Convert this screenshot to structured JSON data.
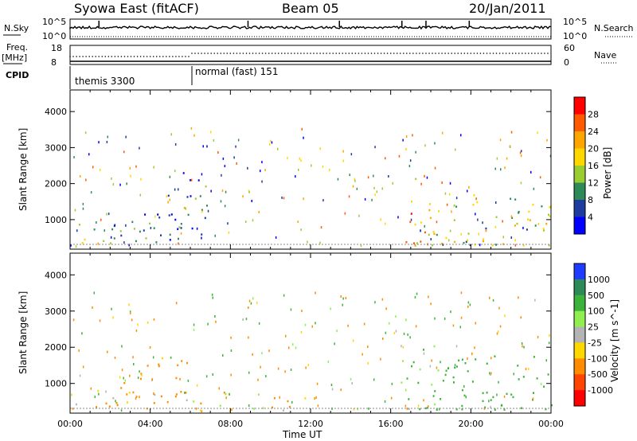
{
  "header": {
    "station": "Syowa East (fitACF)",
    "beam": "Beam 05",
    "date": "20/Jan/2011"
  },
  "top_panels": {
    "nsky_label": "N.Sky",
    "nsky_ticks": [
      "10^5",
      "10^0"
    ],
    "nsearch_label": "N.Search",
    "nsearch_ticks": [
      "10^5",
      "10^0"
    ],
    "freq_label_1": "Freq.",
    "freq_label_2": "[MHz]",
    "freq_ticks": [
      "18",
      "8"
    ],
    "nave_label": "Nave",
    "nave_ticks": [
      "60",
      "0"
    ],
    "cpid_label": "CPID",
    "cpid_modes": [
      {
        "name": "themis 3300",
        "start_hour": 0
      },
      {
        "name": "normal (fast) 151",
        "start_hour": 6
      }
    ]
  },
  "chart_data": [
    {
      "type": "heatmap",
      "title": "Power",
      "ylabel": "Slant Range [km]",
      "xlabel": "",
      "colorbar_label": "Power [dB]",
      "colorbar_ticks": [
        "28",
        "24",
        "20",
        "16",
        "12",
        "8",
        "4"
      ],
      "colorbar_colors": [
        "#ff0000",
        "#ff5a00",
        "#ffa500",
        "#ffd700",
        "#9acd32",
        "#2e8b57",
        "#1e3ca0",
        "#0000ff"
      ],
      "ylim": [
        180,
        4600
      ],
      "yticks": [
        "4000",
        "3000",
        "2000",
        "1000"
      ],
      "xlim": [
        0,
        24
      ],
      "xticks": [
        "00:00",
        "04:00",
        "08:00",
        "12:00",
        "16:00",
        "20:00",
        "00:00"
      ],
      "regions": [
        {
          "t_start": 0.0,
          "t_end": 2.5,
          "r_min": 300,
          "r_max": 1000,
          "value": 12
        },
        {
          "t_start": 2.5,
          "t_end": 5.5,
          "r_min": 350,
          "r_max": 1700,
          "value": 8
        },
        {
          "t_start": 5.5,
          "t_end": 7.0,
          "r_min": 500,
          "r_max": 2500,
          "value": 6
        },
        {
          "t_start": 16.5,
          "t_end": 18.5,
          "r_min": 300,
          "r_max": 2200,
          "value": 20
        },
        {
          "t_start": 18.5,
          "t_end": 24.0,
          "r_min": 300,
          "r_max": 1800,
          "value": 14
        }
      ]
    },
    {
      "type": "heatmap",
      "title": "Velocity",
      "ylabel": "Slant Range [km]",
      "xlabel": "Time UT",
      "colorbar_label": "Velocity [m s^-1]",
      "colorbar_ticks": [
        "1000",
        "500",
        "100",
        "25",
        "-25",
        "-100",
        "-500",
        "-1000"
      ],
      "colorbar_colors": [
        "#1e3cff",
        "#2e8b57",
        "#3cb43c",
        "#90ee50",
        "#b4b4b4",
        "#ffd700",
        "#ff8c00",
        "#ff4500",
        "#ff0000"
      ],
      "ylim": [
        180,
        4600
      ],
      "yticks": [
        "4000",
        "3000",
        "2000",
        "1000"
      ],
      "xlim": [
        0,
        24
      ],
      "xticks": [
        "00:00",
        "04:00",
        "08:00",
        "12:00",
        "16:00",
        "20:00",
        "00:00"
      ],
      "regions": [
        {
          "t_start": 0.0,
          "t_end": 2.5,
          "r_min": 300,
          "r_max": 900,
          "value": -100
        },
        {
          "t_start": 2.5,
          "t_end": 6.0,
          "r_min": 300,
          "r_max": 1800,
          "value": -150
        },
        {
          "t_start": 6.0,
          "t_end": 12.0,
          "r_min": 250,
          "r_max": 800,
          "value": -60
        },
        {
          "t_start": 16.5,
          "t_end": 18.5,
          "r_min": 300,
          "r_max": 2200,
          "value": 150
        },
        {
          "t_start": 18.5,
          "t_end": 24.0,
          "r_min": 300,
          "r_max": 1800,
          "value": 300
        }
      ]
    }
  ]
}
